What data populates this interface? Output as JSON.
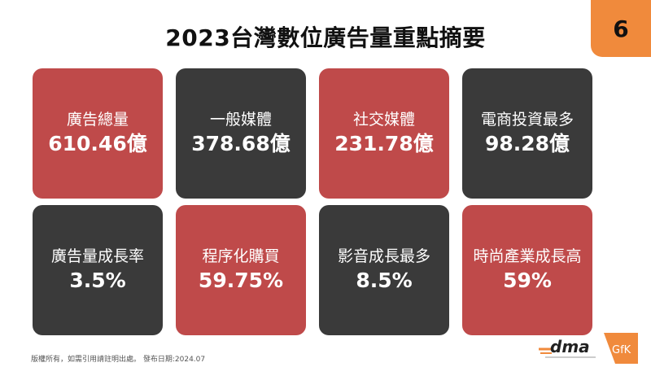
{
  "title": "2023台灣數位廣告量重點摘要",
  "page_number": "6",
  "cards": [
    {
      "label": "廣告總量",
      "value": "610.46億",
      "color": "#bf4a4a"
    },
    {
      "label": "一般媒體",
      "value": "378.68億",
      "color": "#3a3a3a"
    },
    {
      "label": "社交媒體",
      "value": "231.78億",
      "color": "#bf4a4a"
    },
    {
      "label": "電商投資最多",
      "value": "98.28億",
      "color": "#3a3a3a"
    },
    {
      "label": "廣告量成長率",
      "value": "3.5%",
      "color": "#3a3a3a"
    },
    {
      "label": "程序化購買",
      "value": "59.75%",
      "color": "#bf4a4a"
    },
    {
      "label": "影音成長最多",
      "value": "8.5%",
      "color": "#3a3a3a"
    },
    {
      "label": "時尚產業成長高",
      "value": "59%",
      "color": "#bf4a4a"
    }
  ],
  "footer": "版權所有，如需引用請註明出處。 發布日期:2024.07",
  "logos": {
    "dma": "DMA",
    "gfk": "GfK"
  }
}
